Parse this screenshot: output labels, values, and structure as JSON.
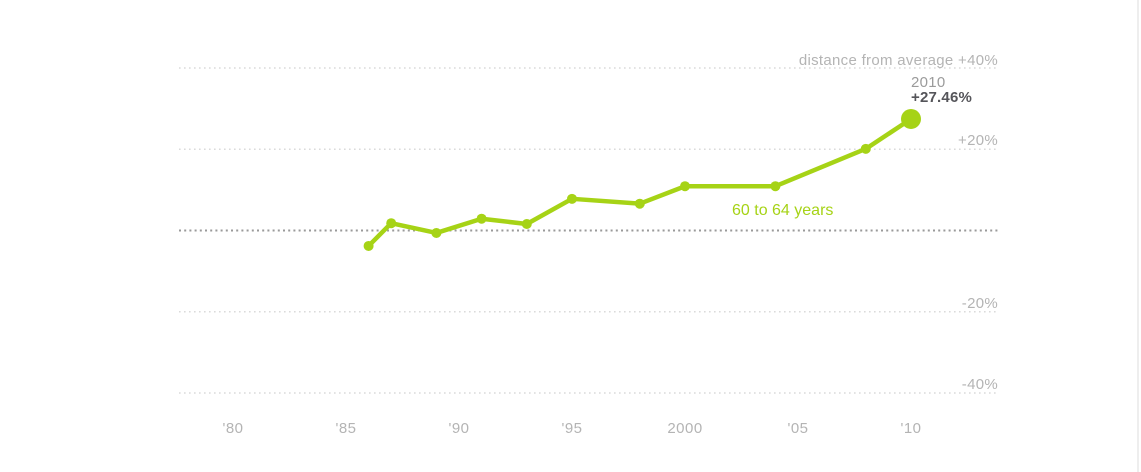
{
  "colors": {
    "series_green": "#a6d316",
    "axis_gray": "#b4b4b4",
    "zero_line_gray": "#9a9a9a",
    "gridline_gray": "#dadada",
    "annotation_year_gray": "#9b9b9b",
    "annotation_value_dark": "#55555a",
    "page_border_gray": "#eeeeee"
  },
  "labels": {
    "axis_note": "distance from average +40%",
    "ytick_p20": "+20%",
    "ytick_m20": "-20%",
    "ytick_m40": "-40%",
    "annotation_year": "2010",
    "annotation_value": "+27.46%",
    "series_label": "60 to 64 years"
  },
  "chart_data": {
    "type": "line",
    "title": "",
    "xlabel": "",
    "ylabel": "distance from average (%)",
    "xlim": [
      1977.6,
      2013.8
    ],
    "ylim": [
      -47,
      47
    ],
    "grid": "dotted-horizontal",
    "legend_position": "inline-label-on-chart",
    "zero_baseline": true,
    "series": [
      {
        "name": "60 to 64 years",
        "color": "#a6d316",
        "points": [
          {
            "x": 1986,
            "y": -3.8
          },
          {
            "x": 1987,
            "y": 1.8
          },
          {
            "x": 1989,
            "y": -0.6
          },
          {
            "x": 1991,
            "y": 2.9
          },
          {
            "x": 1993,
            "y": 1.6
          },
          {
            "x": 1995,
            "y": 7.8
          },
          {
            "x": 1998,
            "y": 6.6
          },
          {
            "x": 2000,
            "y": 10.9
          },
          {
            "x": 2004,
            "y": 10.9
          },
          {
            "x": 2008,
            "y": 20.1
          },
          {
            "x": 2010,
            "y": 27.46
          }
        ],
        "highlight_last_point": true
      }
    ],
    "x_ticks": [
      {
        "x": 1980,
        "label": "'80"
      },
      {
        "x": 1985,
        "label": "'85"
      },
      {
        "x": 1990,
        "label": "'90"
      },
      {
        "x": 1995,
        "label": "'95"
      },
      {
        "x": 2000,
        "label": "2000"
      },
      {
        "x": 2005,
        "label": "'05"
      },
      {
        "x": 2010,
        "label": "'10"
      }
    ],
    "y_ticks": [
      {
        "y": 40,
        "label": "+40%",
        "note": "distance from average"
      },
      {
        "y": 20,
        "label": "+20%"
      },
      {
        "y": 0,
        "label": ""
      },
      {
        "y": -20,
        "label": "-20%"
      },
      {
        "y": -40,
        "label": "-40%"
      }
    ],
    "annotation": {
      "x": 2010,
      "year_label": "2010",
      "value_label": "+27.46%"
    }
  }
}
